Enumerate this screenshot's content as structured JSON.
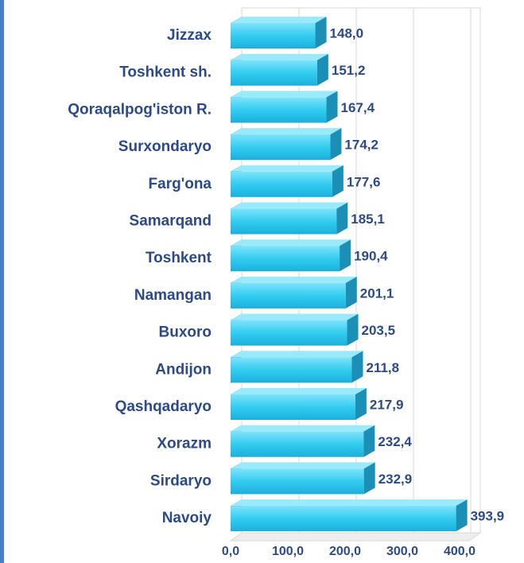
{
  "chart_data": {
    "type": "bar",
    "orientation": "horizontal",
    "categories": [
      "Jizzax",
      "Toshkent sh.",
      "Qoraqalpog'iston R.",
      "Surxondaryo",
      "Farg'ona",
      "Samarqand",
      "Toshkent",
      "Namangan",
      "Buxoro",
      "Andijon",
      "Qashqadaryo",
      "Xorazm",
      "Sirdaryo",
      "Navoiy"
    ],
    "values": [
      148.0,
      151.2,
      167.4,
      174.2,
      177.6,
      185.1,
      190.4,
      201.1,
      203.5,
      211.8,
      217.9,
      232.4,
      232.9,
      393.9
    ],
    "value_labels": [
      "148,0",
      "151,2",
      "167,4",
      "174,2",
      "177,6",
      "185,1",
      "190,4",
      "201,1",
      "203,5",
      "211,8",
      "217,9",
      "232,4",
      "232,9",
      "393,9"
    ],
    "color": "#33ccf0",
    "xlim": [
      0,
      400
    ],
    "xticks": [
      {
        "value": 0,
        "label": "0,0"
      },
      {
        "value": 100,
        "label": "100,0"
      },
      {
        "value": 200,
        "label": "200,0"
      },
      {
        "value": 300,
        "label": "300,0"
      },
      {
        "value": 400,
        "label": "400,0"
      }
    ],
    "grid": true
  }
}
